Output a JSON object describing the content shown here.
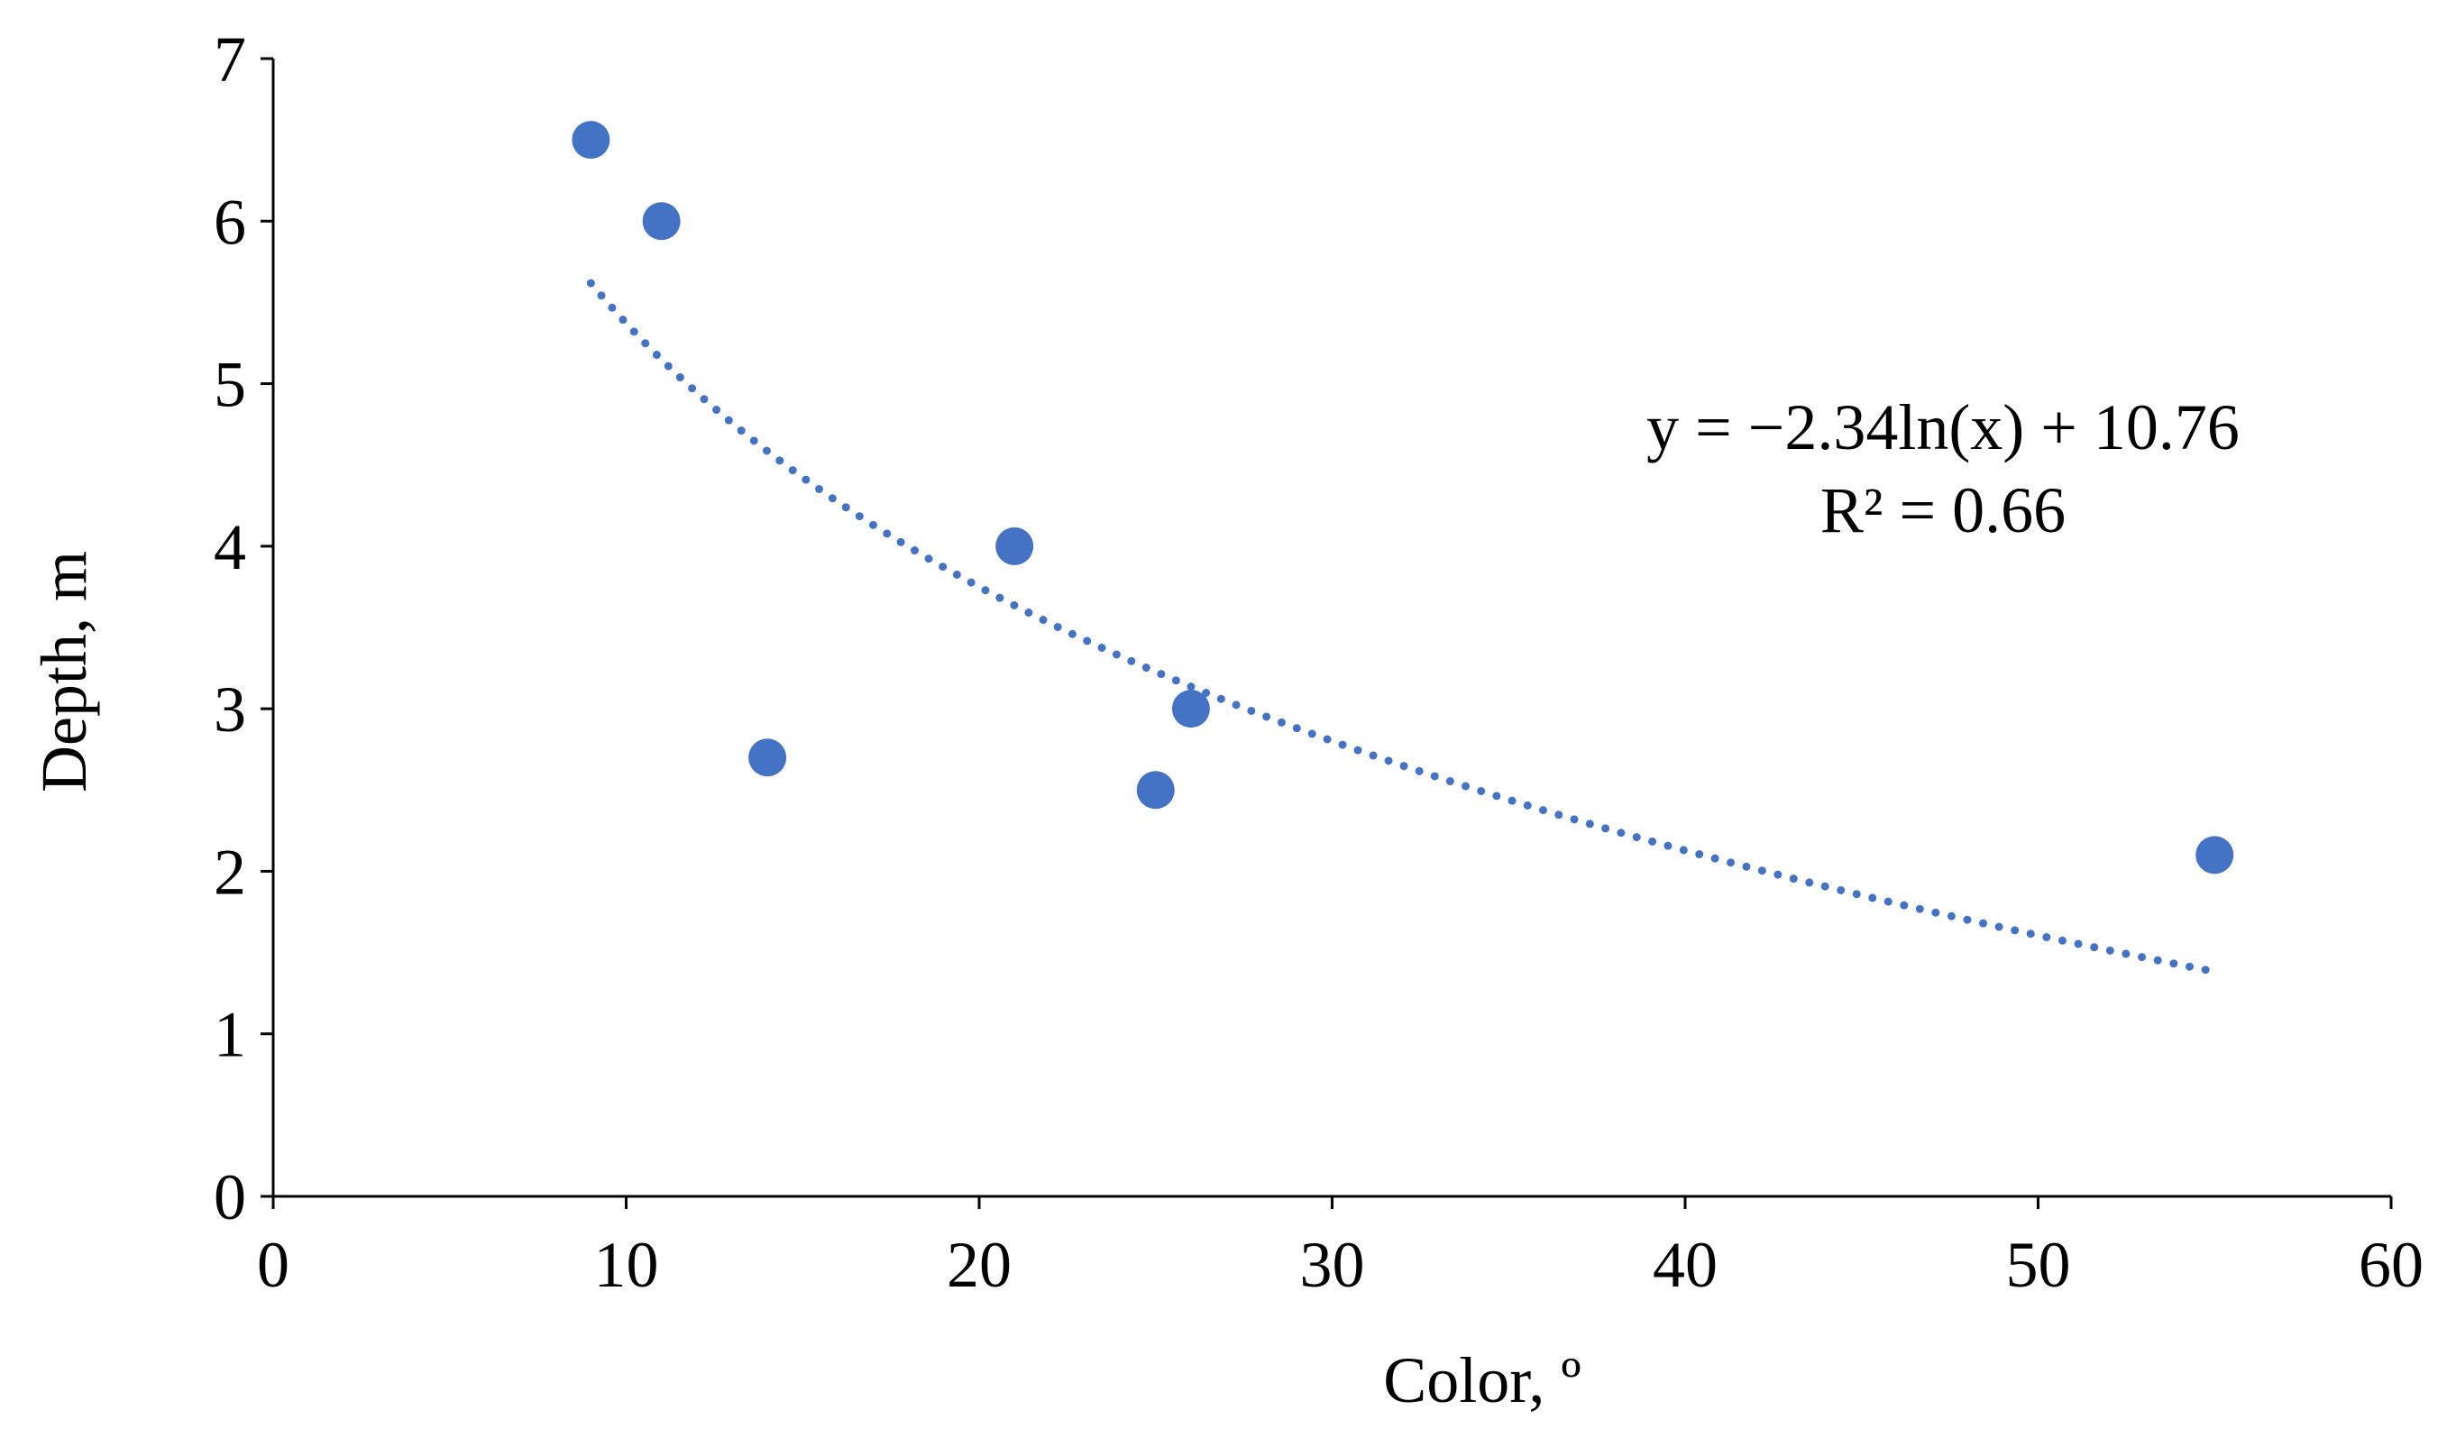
{
  "chart_data": {
    "type": "scatter",
    "title": "",
    "xlabel": "Color, º",
    "ylabel": "Depth, m",
    "xlim": [
      0,
      60
    ],
    "ylim": [
      0,
      7
    ],
    "xticks": [
      "0",
      "10",
      "20",
      "30",
      "40",
      "50",
      "60"
    ],
    "yticks": [
      "0",
      "1",
      "2",
      "3",
      "4",
      "5",
      "6",
      "7"
    ],
    "grid": false,
    "legend": "none",
    "series": [
      {
        "name": "Depth",
        "color": "#4472C4",
        "points": [
          {
            "x": 9,
            "y": 6.5
          },
          {
            "x": 11,
            "y": 6.0
          },
          {
            "x": 14,
            "y": 2.7
          },
          {
            "x": 21,
            "y": 4.0
          },
          {
            "x": 25,
            "y": 2.5
          },
          {
            "x": 26,
            "y": 3.0
          },
          {
            "x": 55,
            "y": 2.1
          }
        ]
      }
    ],
    "trendline": {
      "type": "logarithmic",
      "a": -2.34,
      "b": 10.76,
      "x_range": [
        9,
        55
      ],
      "style": "dotted",
      "color": "#4472C4"
    },
    "annotations": {
      "equation": "y = −2.34ln(x) + 10.76",
      "r_squared": "R² = 0.66"
    }
  }
}
